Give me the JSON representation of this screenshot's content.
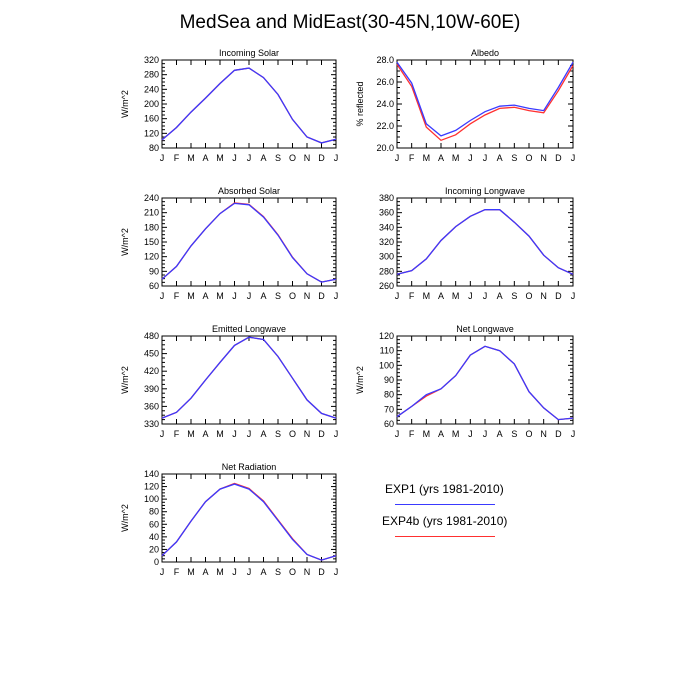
{
  "figure": {
    "title": "MedSea and MidEast(30-45N,10W-60E)"
  },
  "colors": {
    "exp1": "#3a3aff",
    "exp4b": "#ff3030",
    "axis": "#000000"
  },
  "legend": {
    "exp1_label": "EXP1 (yrs 1981-2010)",
    "exp4b_label": "EXP4b (yrs 1981-2010)"
  },
  "months": [
    "J",
    "F",
    "M",
    "A",
    "M",
    "J",
    "J",
    "A",
    "S",
    "O",
    "N",
    "D",
    "J"
  ],
  "chart_data": [
    {
      "type": "line",
      "title": "Incoming Solar",
      "ylabel": "W/m^2",
      "ylim": [
        80,
        320
      ],
      "yticks": [
        "80",
        "120",
        "160",
        "200",
        "240",
        "280",
        "320"
      ],
      "series": [
        {
          "name": "EXP1 (yrs 1981-2010)",
          "values": [
            102,
            136,
            178,
            216,
            256,
            292,
            298,
            272,
            226,
            158,
            110,
            94,
            104
          ]
        },
        {
          "name": "EXP4b (yrs 1981-2010)",
          "values": [
            102,
            136,
            178,
            216,
            256,
            292,
            298,
            272,
            226,
            158,
            110,
            94,
            104
          ]
        }
      ]
    },
    {
      "type": "line",
      "title": "Albedo",
      "ylabel": "% reflected",
      "ylim": [
        20,
        28
      ],
      "yticks": [
        "20.0",
        "22.0",
        "24.0",
        "26.0",
        "28.0"
      ],
      "series": [
        {
          "name": "EXP1 (yrs 1981-2010)",
          "values": [
            27.8,
            25.9,
            22.2,
            21.1,
            21.6,
            22.5,
            23.3,
            23.8,
            23.9,
            23.6,
            23.4,
            25.5,
            27.8
          ]
        },
        {
          "name": "EXP4b (yrs 1981-2010)",
          "values": [
            27.6,
            25.6,
            21.9,
            20.7,
            21.2,
            22.2,
            23.0,
            23.6,
            23.7,
            23.4,
            23.2,
            25.2,
            27.5
          ]
        }
      ]
    },
    {
      "type": "line",
      "title": "Absorbed Solar",
      "ylabel": "W/m^2",
      "ylim": [
        60,
        240
      ],
      "yticks": [
        "60",
        "90",
        "120",
        "150",
        "180",
        "210",
        "240"
      ],
      "series": [
        {
          "name": "EXP1 (yrs 1981-2010)",
          "values": [
            74,
            100,
            142,
            177,
            208,
            229,
            226,
            201,
            164,
            118,
            85,
            68,
            74
          ]
        },
        {
          "name": "EXP4b (yrs 1981-2010)",
          "values": [
            74,
            100,
            142,
            177,
            208,
            230,
            227,
            202,
            165,
            119,
            85,
            68,
            74
          ]
        }
      ]
    },
    {
      "type": "line",
      "title": "Incoming Longwave",
      "ylabel": "",
      "ylim": [
        260,
        380
      ],
      "yticks": [
        "260",
        "280",
        "300",
        "320",
        "340",
        "360",
        "380"
      ],
      "series": [
        {
          "name": "EXP1 (yrs 1981-2010)",
          "values": [
            276,
            281,
            297,
            322,
            341,
            355,
            364,
            364,
            347,
            328,
            302,
            285,
            276
          ]
        },
        {
          "name": "EXP4b (yrs 1981-2010)",
          "values": [
            276,
            281,
            297,
            322,
            341,
            355,
            364,
            364,
            347,
            328,
            302,
            285,
            276
          ]
        }
      ]
    },
    {
      "type": "line",
      "title": "Emitted Longwave",
      "ylabel": "W/m^2",
      "ylim": [
        330,
        480
      ],
      "yticks": [
        "330",
        "360",
        "390",
        "420",
        "450",
        "480"
      ],
      "series": [
        {
          "name": "EXP1 (yrs 1981-2010)",
          "values": [
            340,
            350,
            374,
            405,
            435,
            464,
            478,
            474,
            445,
            408,
            371,
            348,
            340
          ]
        },
        {
          "name": "EXP4b (yrs 1981-2010)",
          "values": [
            340,
            350,
            374,
            405,
            435,
            464,
            478,
            474,
            445,
            408,
            371,
            348,
            340
          ]
        }
      ]
    },
    {
      "type": "line",
      "title": "Net Longwave",
      "ylabel": "W/m^2",
      "ylim": [
        60,
        120
      ],
      "yticks": [
        "60",
        "70",
        "80",
        "90",
        "100",
        "110",
        "120"
      ],
      "series": [
        {
          "name": "EXP1 (yrs 1981-2010)",
          "values": [
            65,
            72,
            80,
            84,
            93,
            107,
            113,
            110,
            101,
            82,
            71,
            63,
            64
          ]
        },
        {
          "name": "EXP4b (yrs 1981-2010)",
          "values": [
            65,
            72,
            79,
            84,
            93,
            107,
            113,
            110,
            101,
            82,
            71,
            63,
            64
          ]
        }
      ]
    },
    {
      "type": "line",
      "title": "Net Radiation",
      "ylabel": "W/m^2",
      "ylim": [
        0,
        140
      ],
      "yticks": [
        "0",
        "20",
        "40",
        "60",
        "80",
        "100",
        "120",
        "140"
      ],
      "series": [
        {
          "name": "EXP1 (yrs 1981-2010)",
          "values": [
            10,
            32,
            65,
            96,
            116,
            124,
            116,
            96,
            66,
            36,
            12,
            3,
            10
          ]
        },
        {
          "name": "EXP4b (yrs 1981-2010)",
          "values": [
            10,
            32,
            65,
            96,
            116,
            125,
            117,
            97,
            67,
            37,
            12,
            3,
            10
          ]
        }
      ]
    }
  ]
}
